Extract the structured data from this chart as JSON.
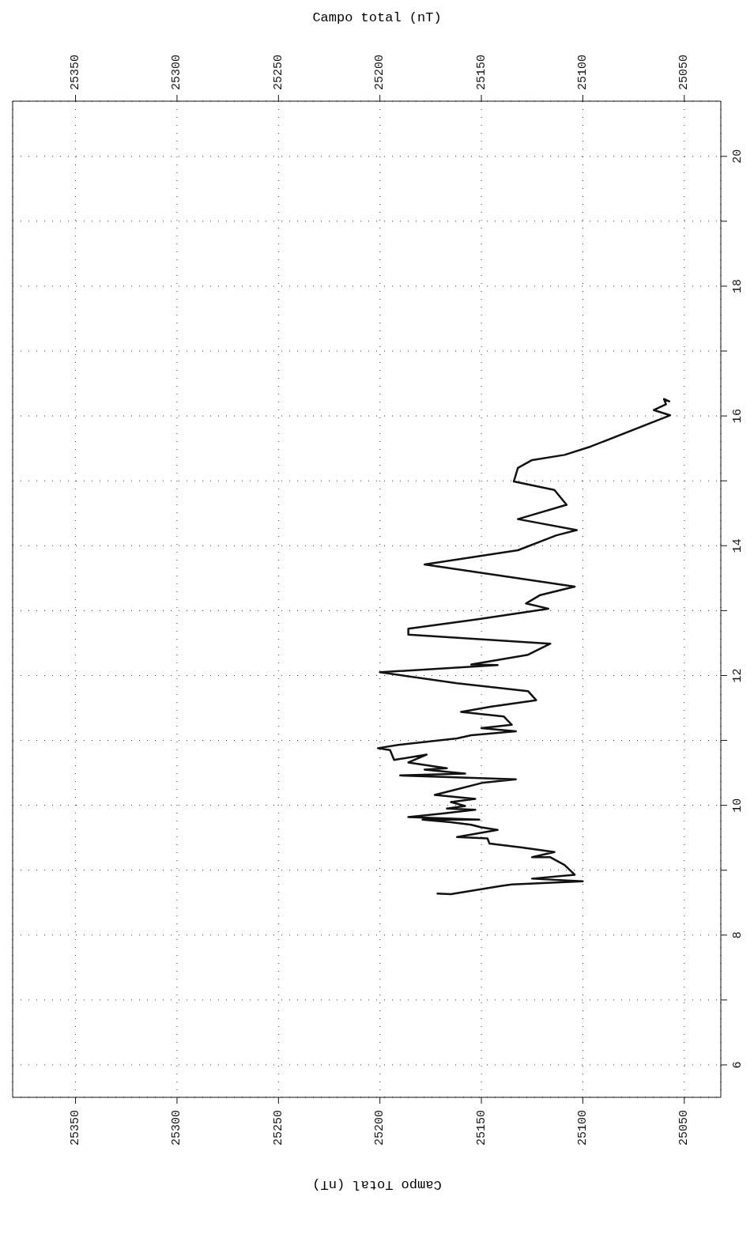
{
  "chart_data": {
    "type": "line",
    "xlabel": "Campo Total (nT)",
    "x2label": "Campo total (nT)",
    "xlim": [
      25381,
      25032
    ],
    "xticks": [
      25350,
      25300,
      25250,
      25200,
      25150,
      25100,
      25050
    ],
    "x2lim": [
      25381,
      25032
    ],
    "x2ticks": [
      25350,
      25300,
      25250,
      25200,
      25150,
      25100,
      25050
    ],
    "ylim": [
      5.5,
      20.85
    ],
    "yticks": [
      6,
      {
        "value": 7,
        "label": null
      },
      8,
      {
        "value": 9,
        "label": null
      },
      10,
      {
        "value": 11,
        "label": null
      },
      12,
      {
        "value": 13,
        "label": null
      },
      14,
      {
        "value": 15,
        "label": null
      },
      16,
      {
        "value": 17,
        "label": null
      },
      18,
      {
        "value": 19,
        "label": null
      },
      20
    ],
    "grid": true,
    "line_style": "solid",
    "marker": "none",
    "series": [
      {
        "color": "#111111",
        "x": [
          25172,
          25165,
          25140,
          25135,
          25100,
          25125,
          25104,
          25109,
          25116,
          25125,
          25114,
          25130,
          25146,
          25147,
          25162,
          25142,
          25150,
          25155,
          25165,
          25179,
          25151,
          25186,
          25170,
          25153,
          25167,
          25158,
          25165,
          25153,
          25173,
          25163,
          25149,
          25133,
          25190,
          25158,
          25178,
          25167,
          25186,
          25177,
          25193,
          25195,
          25201,
          25191,
          25162,
          25155,
          25133,
          25150,
          25135,
          25139,
          25160,
          25145,
          25123,
          25127,
          25162,
          25200,
          25142,
          25155,
          25127,
          25116,
          25186,
          25186,
          25153,
          25117,
          25128,
          25121,
          25104,
          25139,
          25178,
          25132,
          25113,
          25103,
          25132,
          25108,
          25114,
          25134,
          25132,
          25125,
          25109,
          25096,
          25057,
          25065,
          25059,
          25060,
          25057
        ],
        "values": [
          8.64,
          8.63,
          8.76,
          8.78,
          8.83,
          8.87,
          8.93,
          9.08,
          9.2,
          9.2,
          9.28,
          9.35,
          9.41,
          9.49,
          9.51,
          9.62,
          9.66,
          9.7,
          9.74,
          9.78,
          9.78,
          9.82,
          9.87,
          9.93,
          9.95,
          9.99,
          10.05,
          10.1,
          10.16,
          10.24,
          10.35,
          10.4,
          10.46,
          10.49,
          10.55,
          10.57,
          10.66,
          10.78,
          10.7,
          10.85,
          10.88,
          10.93,
          11.03,
          11.08,
          11.14,
          11.19,
          11.24,
          11.37,
          11.44,
          11.52,
          11.62,
          11.76,
          11.88,
          12.05,
          12.16,
          12.17,
          12.32,
          12.49,
          12.63,
          12.72,
          12.86,
          13.03,
          13.11,
          13.24,
          13.37,
          13.53,
          13.71,
          13.93,
          14.16,
          14.24,
          14.41,
          14.63,
          14.86,
          14.99,
          15.2,
          15.32,
          15.4,
          15.53,
          16.01,
          16.09,
          16.18,
          16.26,
          16.22
        ]
      }
    ]
  }
}
